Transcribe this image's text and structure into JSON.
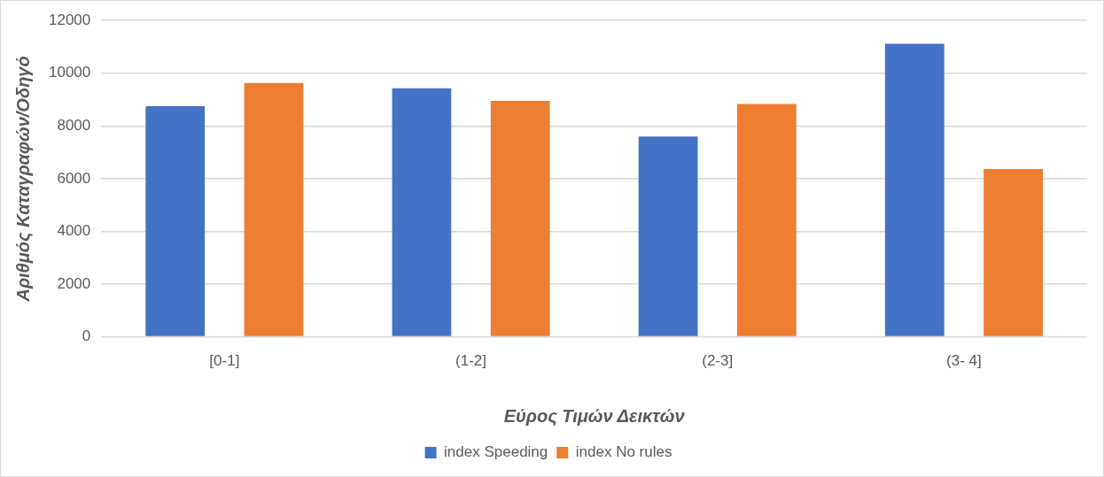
{
  "chart_data": {
    "type": "bar",
    "xlabel": "Εύρος Τιμών Δεικτών",
    "ylabel": "Αριθμός Καταγραφών/Οδηγό",
    "categories": [
      "[0-1]",
      "(1-2]",
      "(2-3]",
      "(3- 4]"
    ],
    "series": [
      {
        "name": "index Speeding",
        "color": "#4472c4",
        "values": [
          8750,
          9430,
          7600,
          11120
        ]
      },
      {
        "name": "index No rules",
        "color": "#ed7d31",
        "values": [
          9630,
          8950,
          8830,
          6370
        ]
      }
    ],
    "ylim": [
      0,
      12000
    ],
    "yticks": [
      0,
      2000,
      4000,
      6000,
      8000,
      10000,
      12000
    ],
    "grid": "y",
    "legend": "bottom"
  }
}
